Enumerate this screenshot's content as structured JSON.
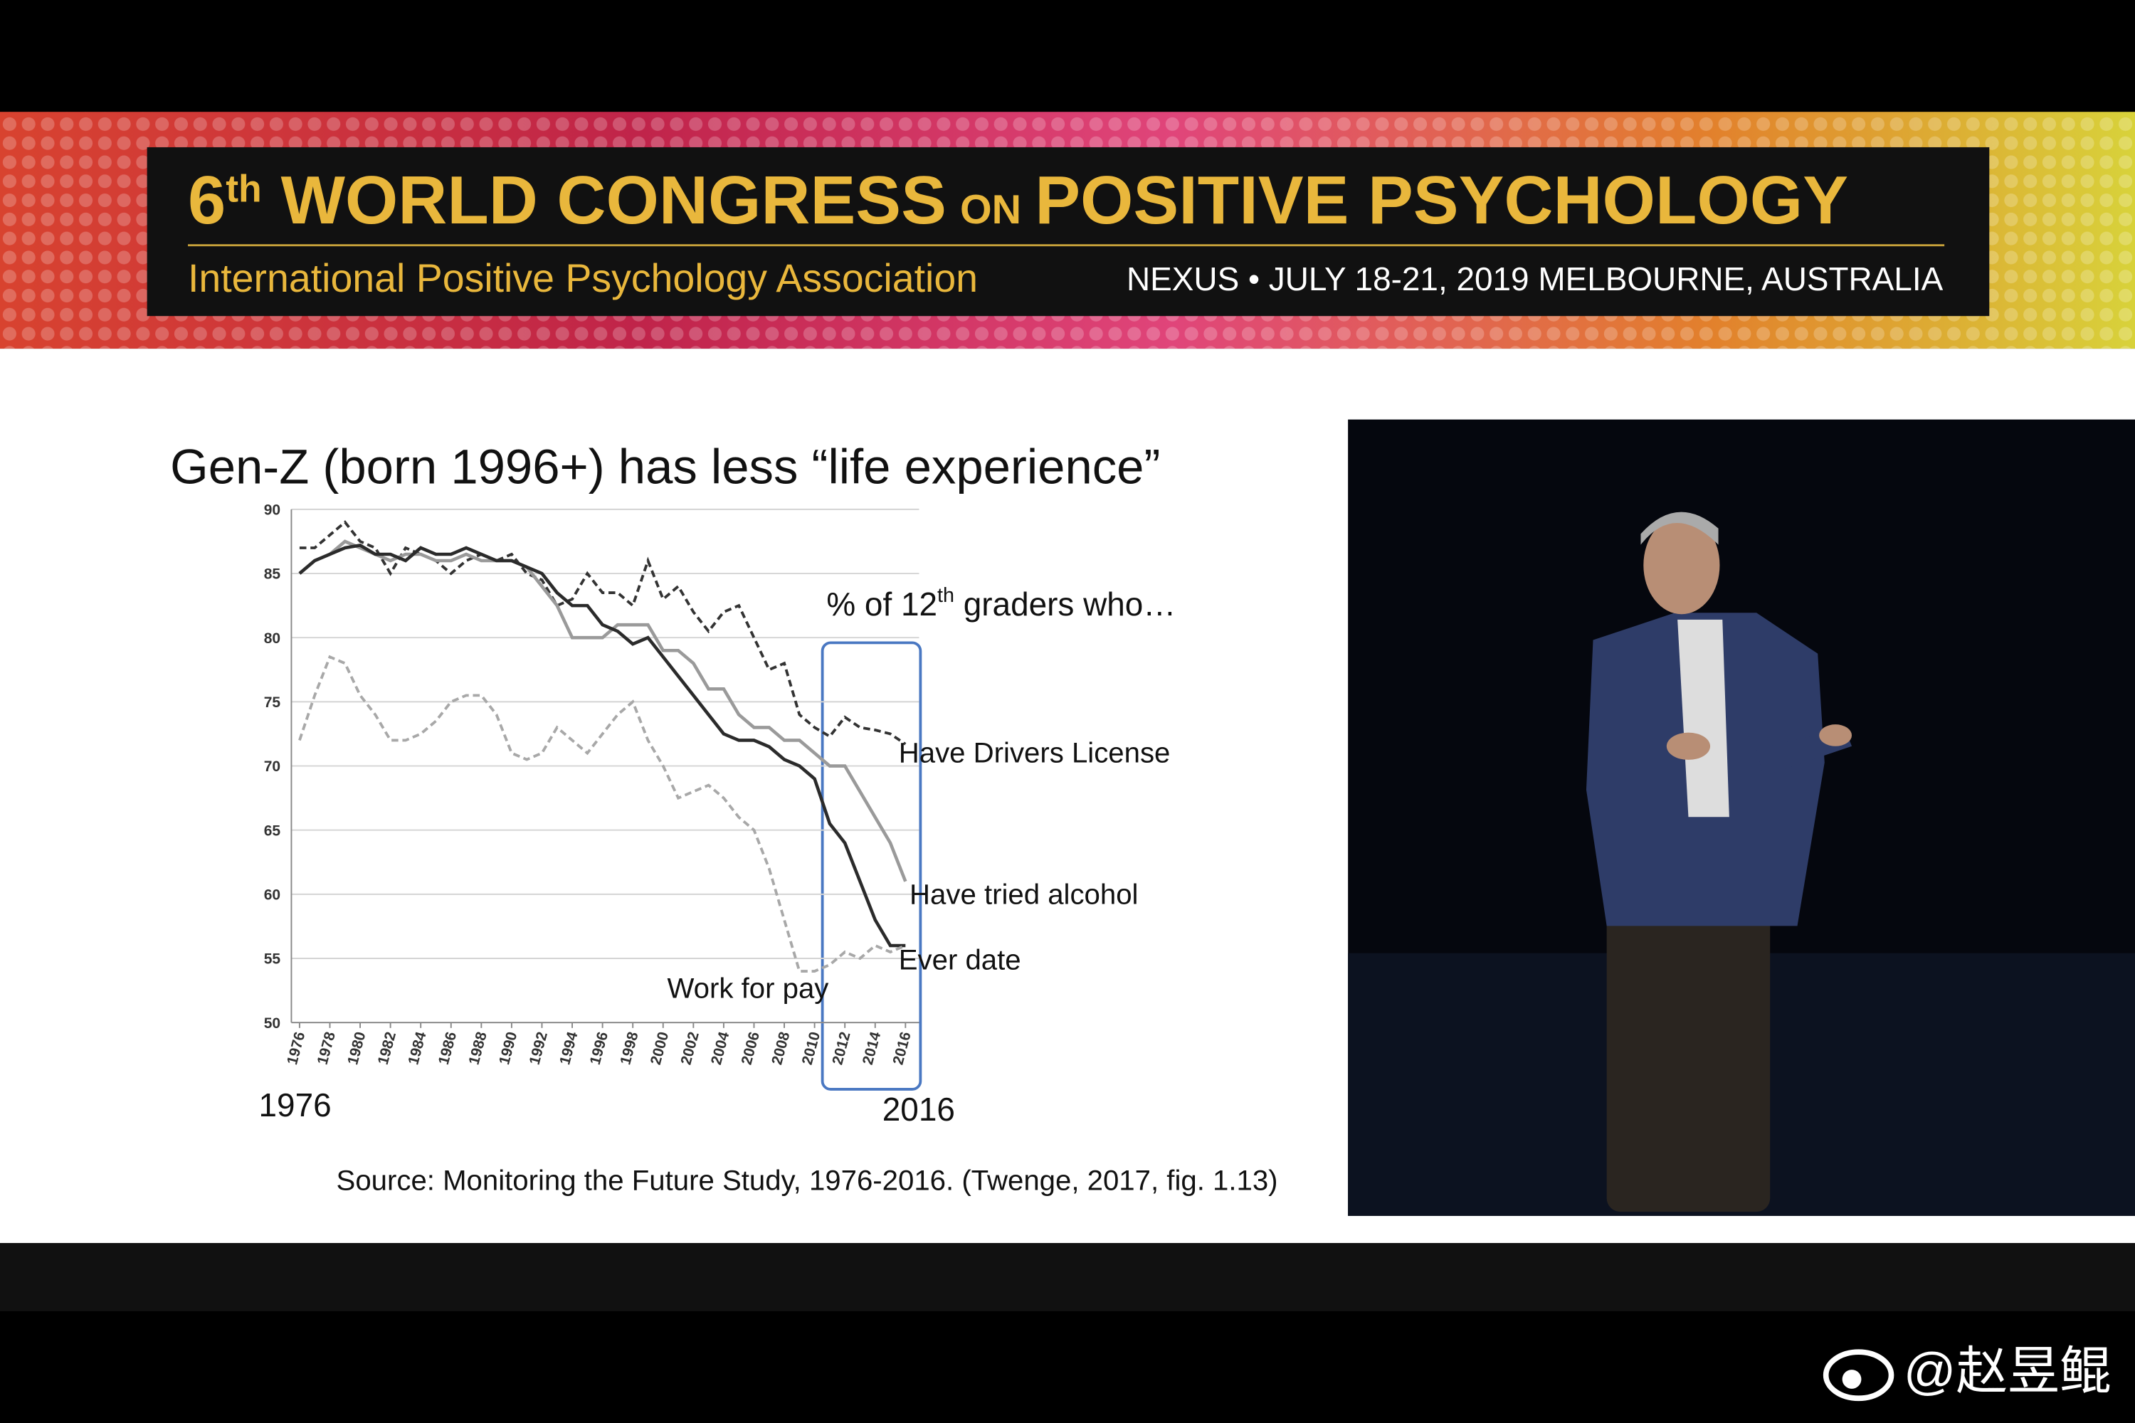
{
  "banner": {
    "ordinal": "6",
    "ordinal_suffix": "th",
    "title_a": "WORLD CONGRESS",
    "title_on": "ON",
    "title_b": "POSITIVE PSYCHOLOGY",
    "association": "International Positive Psychology Association",
    "event": "NEXUS • JULY 18-21, 2019 MELBOURNE, AUSTRALIA"
  },
  "chart_data": {
    "type": "line",
    "title": "Gen-Z (born 1996+) has less “life experience”",
    "annotation": {
      "pre": "% of 12",
      "sup": "th",
      "post": " graders who…"
    },
    "range_labels": [
      "1976",
      "2016"
    ],
    "source": "Source: Monitoring the Future Study, 1976-2016. (Twenge, 2017, fig. 1.13)",
    "x": [
      1976,
      1977,
      1978,
      1979,
      1980,
      1981,
      1982,
      1983,
      1984,
      1985,
      1986,
      1987,
      1988,
      1989,
      1990,
      1991,
      1992,
      1993,
      1994,
      1995,
      1996,
      1997,
      1998,
      1999,
      2000,
      2001,
      2002,
      2003,
      2004,
      2005,
      2006,
      2007,
      2008,
      2009,
      2010,
      2011,
      2012,
      2013,
      2014,
      2015,
      2016
    ],
    "xlim": [
      1976,
      2016
    ],
    "xticks": [
      1976,
      1978,
      1980,
      1982,
      1984,
      1986,
      1988,
      1990,
      1992,
      1994,
      1996,
      1998,
      2000,
      2002,
      2004,
      2006,
      2008,
      2010,
      2012,
      2014,
      2016
    ],
    "ylim": [
      50,
      90
    ],
    "yticks": [
      50,
      55,
      60,
      65,
      70,
      75,
      80,
      85,
      90
    ],
    "grid": true,
    "series": [
      {
        "name": "Have Drivers License",
        "color": "#333333",
        "dashed": true,
        "values": [
          87,
          87,
          88,
          89,
          87.5,
          87,
          85,
          87,
          86.5,
          86,
          85,
          86,
          86.5,
          86,
          86.5,
          85,
          84.5,
          82.5,
          83,
          85,
          83.5,
          83.5,
          82.5,
          86,
          83,
          84,
          82,
          80.5,
          82,
          82.5,
          80,
          77.5,
          78,
          74,
          73,
          72.3,
          73.8,
          73,
          72.8,
          72.5,
          71.7
        ]
      },
      {
        "name": "Have tried alcohol",
        "color": "#9a9a9a",
        "dashed": false,
        "values": [
          85,
          86,
          86.5,
          87.5,
          87,
          86.5,
          86,
          86.5,
          86.5,
          86,
          86,
          86.5,
          86,
          86,
          86,
          85.5,
          84,
          82.5,
          80,
          80,
          80,
          81,
          81,
          81,
          79,
          79,
          78,
          76,
          76,
          74,
          73,
          73,
          72,
          72,
          71,
          70,
          70,
          68,
          66,
          64,
          61
        ]
      },
      {
        "name": "Ever date",
        "color": "#2b2b2b",
        "dashed": false,
        "values": [
          85,
          86,
          86.5,
          87,
          87.2,
          86.5,
          86.5,
          86,
          87,
          86.5,
          86.5,
          87,
          86.5,
          86,
          86,
          85.5,
          85,
          83.5,
          82.5,
          82.5,
          81,
          80.5,
          79.5,
          80,
          78.5,
          77,
          75.5,
          74,
          72.5,
          72,
          72,
          71.5,
          70.5,
          70,
          69,
          65.5,
          64,
          61,
          58,
          56,
          56
        ]
      },
      {
        "name": "Work for pay",
        "color": "#a8a8a8",
        "dashed": true,
        "values": [
          72,
          75.5,
          78.5,
          78,
          75.5,
          74,
          72,
          72,
          72.5,
          73.5,
          75,
          75.5,
          75.5,
          74,
          71,
          70.5,
          71,
          73,
          72,
          71,
          72.5,
          74,
          75,
          72,
          70,
          67.5,
          68,
          68.5,
          67.5,
          66,
          65,
          62,
          58,
          54,
          54,
          54.5,
          55.5,
          55,
          56,
          55.5,
          56
        ]
      }
    ]
  },
  "watermark": "@赵昱鲲"
}
